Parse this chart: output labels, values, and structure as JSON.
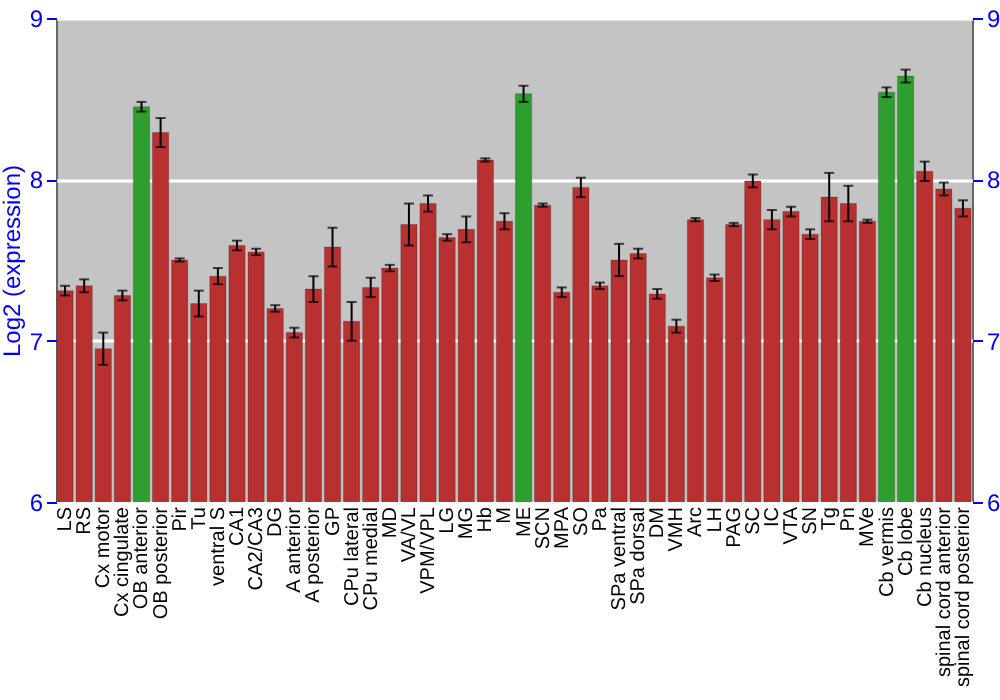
{
  "chart_data": {
    "type": "bar",
    "ylabel": "Log2 (expression)",
    "categories": [
      "LS",
      "RS",
      "Cx motor",
      "Cx cingulate",
      "OB anterior",
      "OB posterior",
      "Pir",
      "Tu",
      "ventral S",
      "CA1",
      "CA2/CA3",
      "DG",
      "A anterior",
      "A posterior",
      "GP",
      "CPu lateral",
      "CPu medial",
      "MD",
      "VA/VL",
      "VPM/VPL",
      "LG",
      "MG",
      "Hb",
      "M",
      "ME",
      "SCN",
      "MPA",
      "SO",
      "Pa",
      "SPa ventral",
      "SPa dorsal",
      "DM",
      "VMH",
      "Arc",
      "LH",
      "PAG",
      "SC",
      "IC",
      "VTA",
      "SN",
      "Tg",
      "Pn",
      "MVe",
      "Cb vermis",
      "Cb lobe",
      "Cb nucleus",
      "spinal cord anterior",
      "spinal cord posterior"
    ],
    "values": [
      7.31,
      7.34,
      6.95,
      7.28,
      8.45,
      8.29,
      7.5,
      7.23,
      7.4,
      7.59,
      7.55,
      7.2,
      7.05,
      7.32,
      7.58,
      7.12,
      7.33,
      7.45,
      7.72,
      7.85,
      7.64,
      7.69,
      8.12,
      7.74,
      8.53,
      7.84,
      7.3,
      7.95,
      7.34,
      7.5,
      7.54,
      7.29,
      7.09,
      7.75,
      7.39,
      7.72,
      7.99,
      7.75,
      7.8,
      7.66,
      7.89,
      7.85,
      7.74,
      8.54,
      8.64,
      8.05,
      7.94,
      7.82
    ],
    "errors": [
      0.03,
      0.04,
      0.1,
      0.03,
      0.03,
      0.09,
      0.01,
      0.08,
      0.05,
      0.03,
      0.02,
      0.02,
      0.03,
      0.08,
      0.12,
      0.12,
      0.06,
      0.02,
      0.13,
      0.05,
      0.02,
      0.08,
      0.01,
      0.05,
      0.05,
      0.01,
      0.03,
      0.06,
      0.02,
      0.1,
      0.03,
      0.03,
      0.04,
      0.01,
      0.02,
      0.01,
      0.04,
      0.06,
      0.03,
      0.03,
      0.15,
      0.11,
      0.01,
      0.03,
      0.04,
      0.06,
      0.04,
      0.05
    ],
    "colors": [
      "#b83030",
      "#b83030",
      "#b83030",
      "#b83030",
      "#2e9e2e",
      "#b83030",
      "#b83030",
      "#b83030",
      "#b83030",
      "#b83030",
      "#b83030",
      "#b83030",
      "#b83030",
      "#b83030",
      "#b83030",
      "#b83030",
      "#b83030",
      "#b83030",
      "#b83030",
      "#b83030",
      "#b83030",
      "#b83030",
      "#b83030",
      "#b83030",
      "#2e9e2e",
      "#b83030",
      "#b83030",
      "#b83030",
      "#b83030",
      "#b83030",
      "#b83030",
      "#b83030",
      "#b83030",
      "#b83030",
      "#b83030",
      "#b83030",
      "#b83030",
      "#b83030",
      "#b83030",
      "#b83030",
      "#b83030",
      "#b83030",
      "#b83030",
      "#2e9e2e",
      "#2e9e2e",
      "#b83030",
      "#b83030",
      "#b83030"
    ],
    "ylim": [
      6,
      9
    ],
    "yticks": [
      6,
      7,
      8,
      9
    ],
    "y2lim": [
      6,
      9
    ],
    "y2ticks": [
      6,
      7,
      8,
      9
    ],
    "grid": "y"
  }
}
